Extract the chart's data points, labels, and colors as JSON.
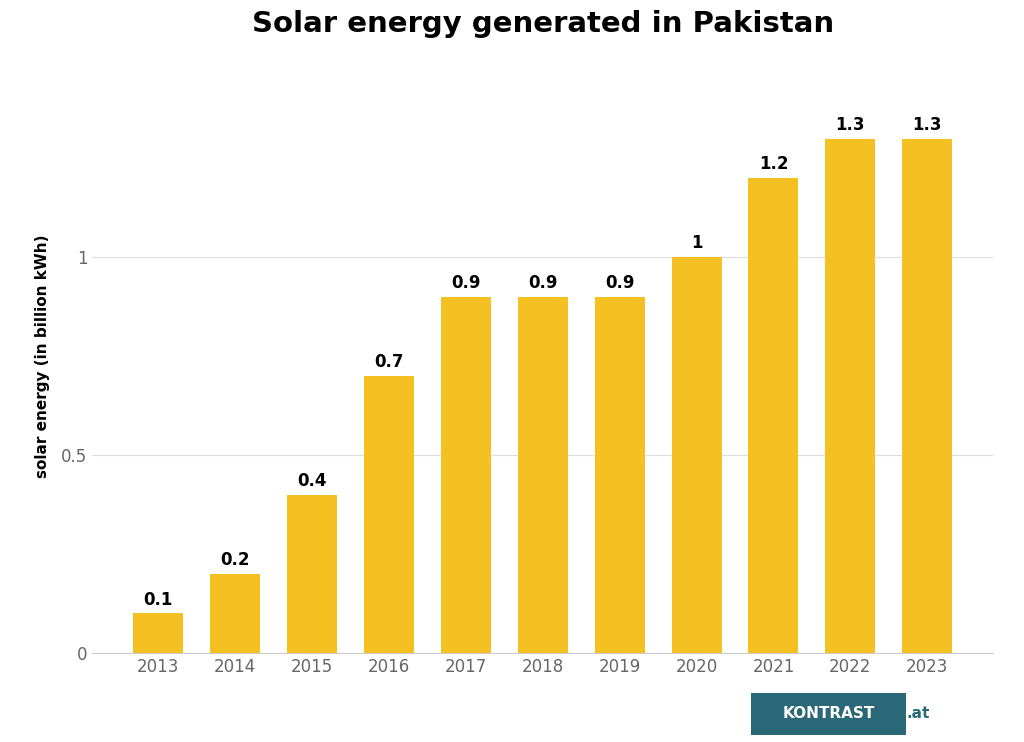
{
  "title": "Solar energy generated in Pakistan",
  "ylabel": "solar energy (in billion kWh)",
  "years": [
    "2013",
    "2014",
    "2015",
    "2016",
    "2017",
    "2018",
    "2019",
    "2020",
    "2021",
    "2022",
    "2023"
  ],
  "values": [
    0.1,
    0.2,
    0.4,
    0.7,
    0.9,
    0.9,
    0.9,
    1.0,
    1.2,
    1.3,
    1.3
  ],
  "bar_labels": [
    "0.1",
    "0.2",
    "0.4",
    "0.7",
    "0.9",
    "0.9",
    "0.9",
    "1",
    "1.2",
    "1.3",
    "1.3"
  ],
  "bar_color": "#F5C022",
  "background_color": "#ffffff",
  "grid_color": "#dddddd",
  "ylim": [
    0,
    1.5
  ],
  "yticks": [
    0,
    0.5,
    1
  ],
  "ytick_labels": [
    "0",
    "0.5",
    "1"
  ],
  "title_fontsize": 21,
  "axis_label_fontsize": 11,
  "bar_label_fontsize": 12,
  "tick_fontsize": 12,
  "kontrast_bg": "#2a6878",
  "kontrast_text": "#ffffff",
  "kontrast_at_color": "#2a6878"
}
